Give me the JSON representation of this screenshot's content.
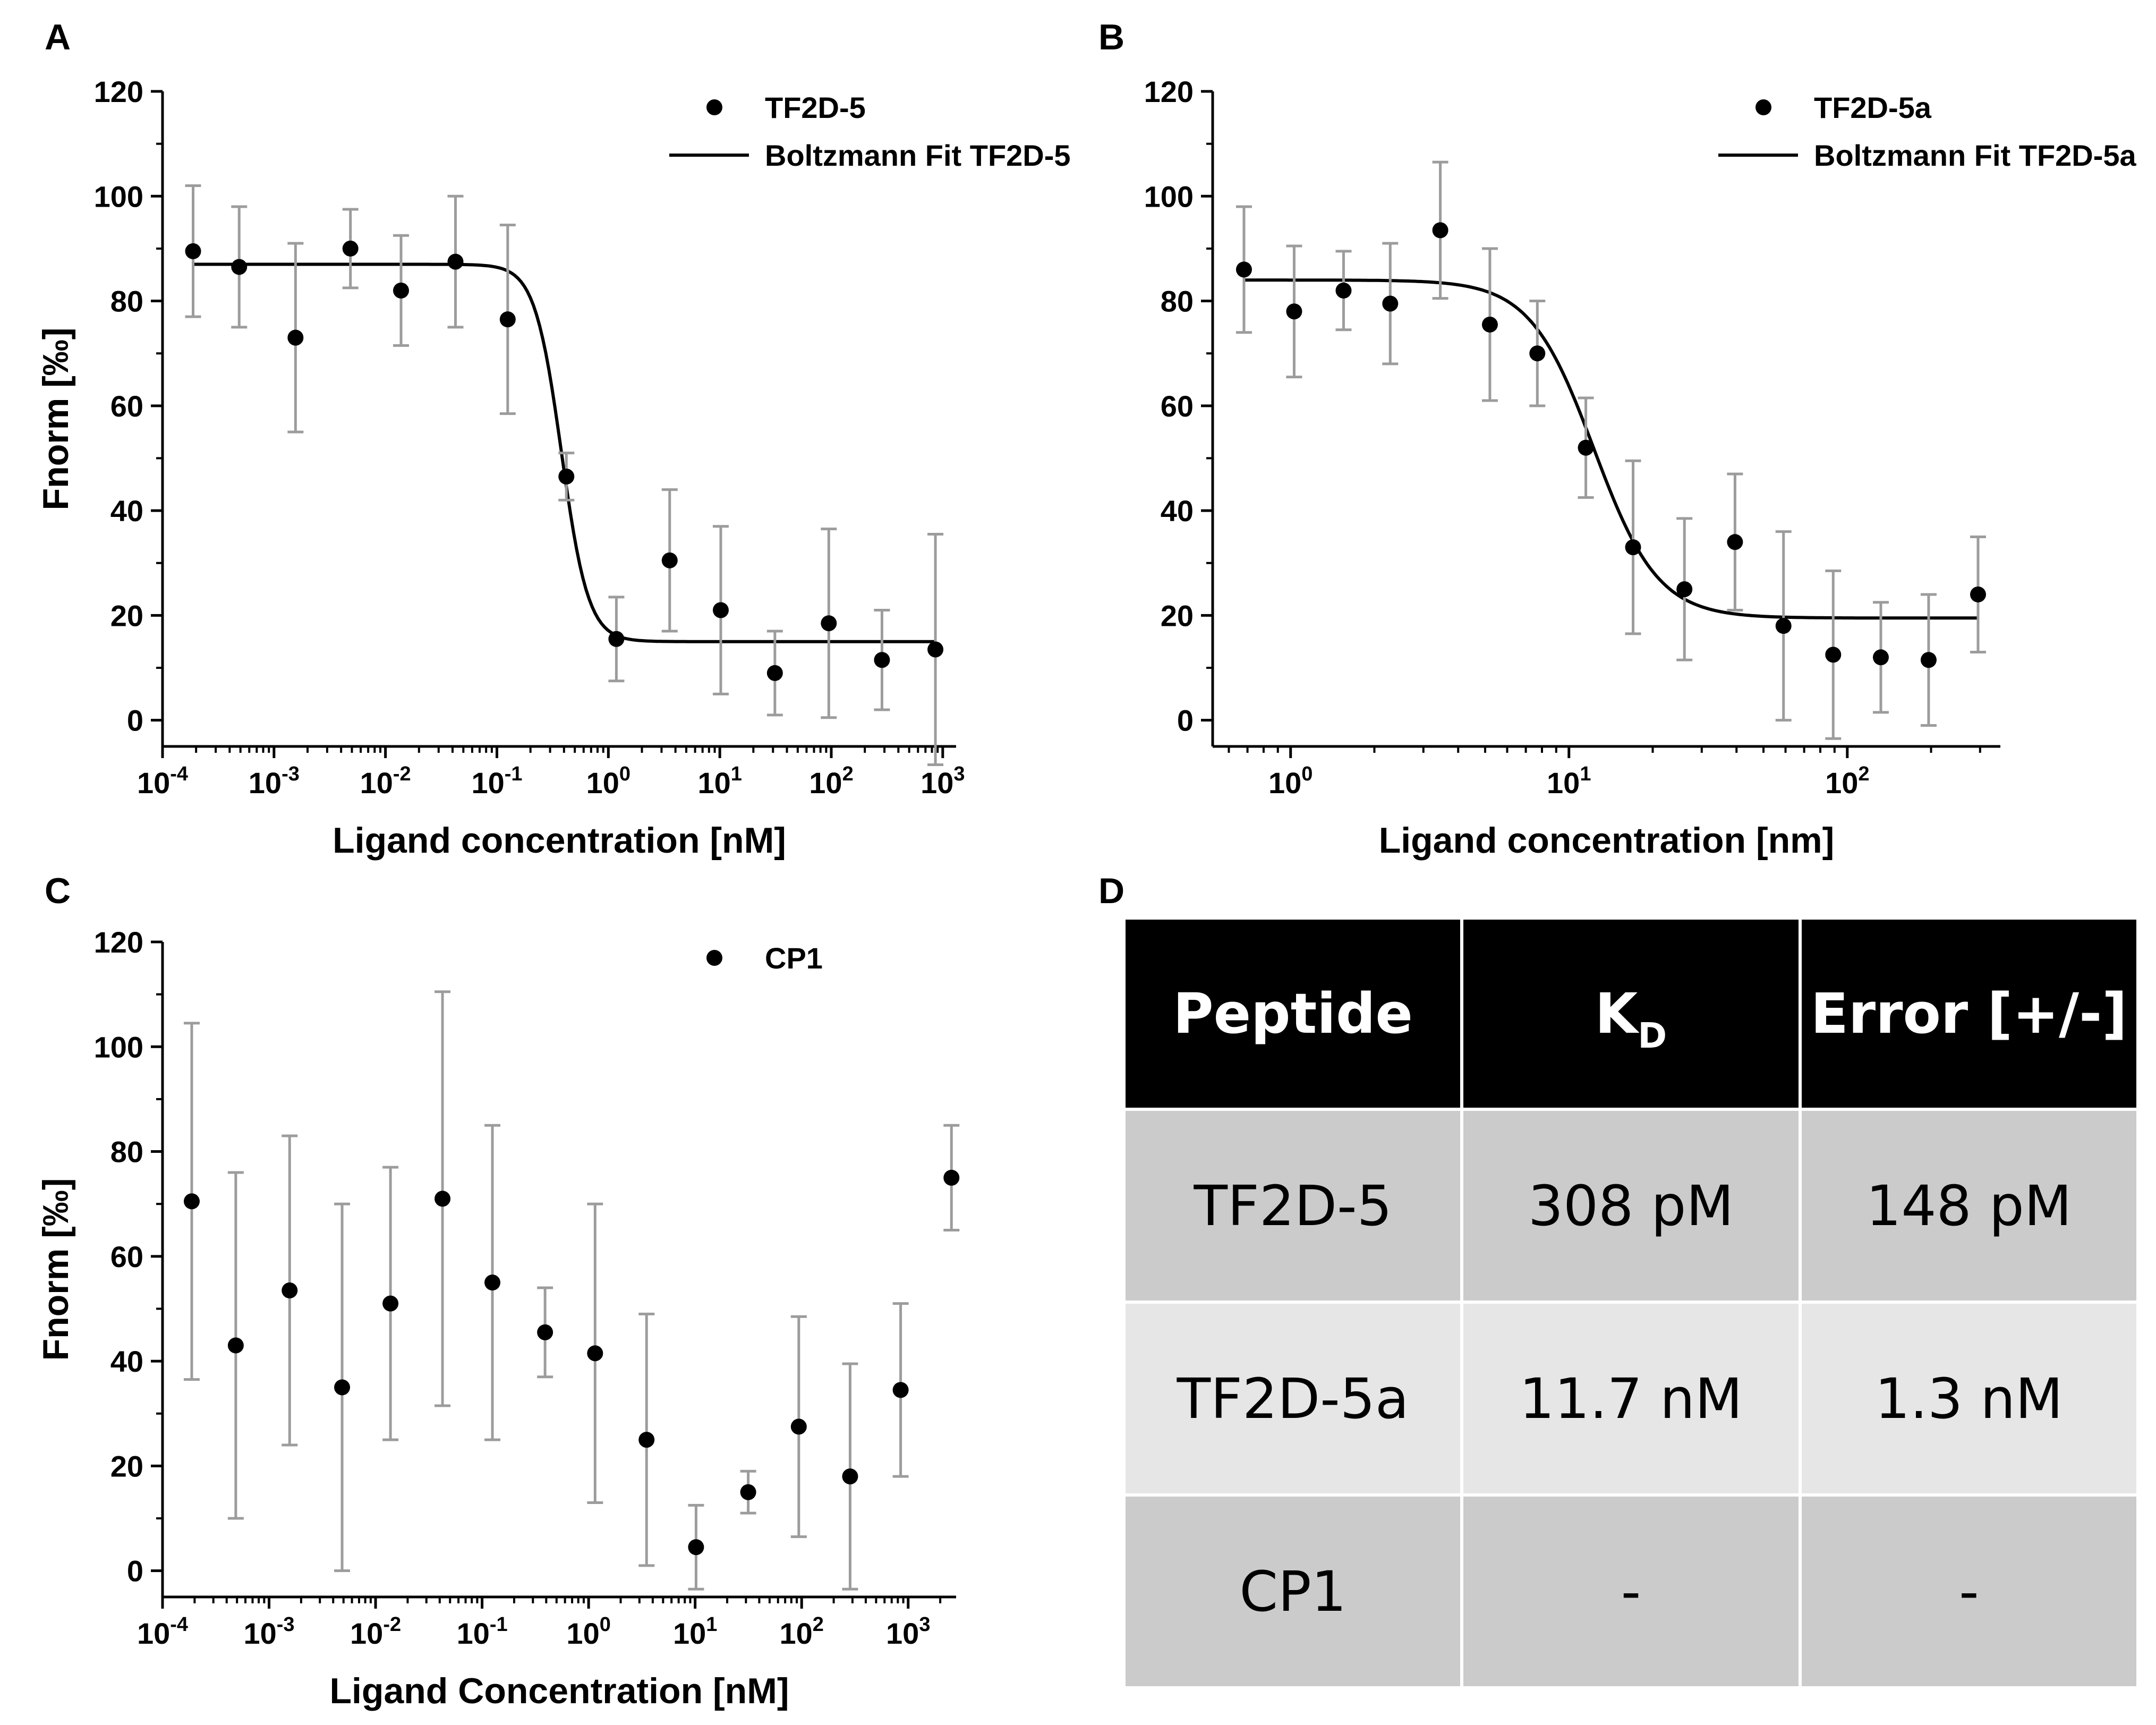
{
  "panels": [
    {
      "letter": "A",
      "chart_data": {
        "type": "scatter",
        "xscale": "log",
        "xlim_log10": [
          -4.0,
          3.12
        ],
        "ylim": [
          -5,
          120
        ],
        "yticks": [
          0,
          20,
          40,
          60,
          80,
          100,
          120
        ],
        "xtick_labels": [
          {
            "pow": -4,
            "text": "10",
            "sup": "-4"
          },
          {
            "pow": -3,
            "text": "10",
            "sup": "-3"
          },
          {
            "pow": -2,
            "text": "10",
            "sup": "-2"
          },
          {
            "pow": -1,
            "text": "10",
            "sup": "-1"
          },
          {
            "pow": 0,
            "text": "10",
            "sup": "0"
          },
          {
            "pow": 1,
            "text": "10",
            "sup": "1"
          },
          {
            "pow": 2,
            "text": "10",
            "sup": "2"
          },
          {
            "pow": 3,
            "text": "10",
            "sup": "3"
          }
        ],
        "xlabel": "Ligand concentration [nM]",
        "ylabel": "Fnorm [‰]",
        "legend_position": "top-right",
        "series": [
          {
            "name": "TF2D-5",
            "kind": "points",
            "x": [
              0.000188,
              0.000487,
              0.00156,
              0.00485,
              0.0138,
              0.0425,
              0.125,
              0.42,
              1.18,
              3.55,
              10.2,
              31.2,
              95.0,
              285.0,
              860.0
            ],
            "y": [
              89.5,
              86.5,
              73,
              90,
              82,
              87.5,
              76.5,
              46.5,
              15.5,
              30.5,
              21,
              9,
              18.5,
              11.5,
              13.5
            ],
            "err": [
              12.5,
              11.5,
              18,
              7.5,
              10.5,
              12.5,
              18,
              4.5,
              8,
              13.5,
              16,
              8,
              18,
              9.5,
              22
            ]
          },
          {
            "name": "Boltzmann Fit TF2D-5",
            "kind": "fit",
            "top": 87,
            "bottom": 15,
            "x0_log10": -0.42,
            "dx": 0.12,
            "range_log10": [
              -3.72,
              2.93
            ]
          }
        ]
      }
    },
    {
      "letter": "B",
      "chart_data": {
        "type": "scatter",
        "xscale": "log",
        "xlim_log10": [
          -0.28,
          2.55
        ],
        "ylim": [
          -5,
          120
        ],
        "yticks": [
          0,
          20,
          40,
          60,
          80,
          100,
          120
        ],
        "xtick_labels": [
          {
            "pow": 0,
            "text": "10",
            "sup": "0"
          },
          {
            "pow": 1,
            "text": "10",
            "sup": "1"
          },
          {
            "pow": 2,
            "text": "10",
            "sup": "2"
          }
        ],
        "xlabel": "Ligand concentration [nm]",
        "ylabel": "Fnorm [‰]",
        "legend_position": "top-right",
        "series": [
          {
            "name": "TF2D-5a",
            "kind": "points",
            "x": [
              0.68,
              1.03,
              1.55,
              2.28,
              3.45,
              5.2,
              7.7,
              11.5,
              17.0,
              26.0,
              39.5,
              59.0,
              89.0,
              132.0,
              196.0,
              295.0
            ],
            "y": [
              86,
              78,
              82,
              79.5,
              93.5,
              75.5,
              70,
              52,
              33,
              25,
              34,
              18,
              12.5,
              12,
              11.5,
              24
            ],
            "err": [
              12,
              12.5,
              7.5,
              11.5,
              13,
              14.5,
              10,
              9.5,
              16.5,
              13.5,
              13,
              18,
              16,
              10.5,
              12.5,
              11
            ]
          },
          {
            "name": "Boltzmann Fit TF2D-5a",
            "kind": "fit",
            "top": 84,
            "bottom": 19.5,
            "x0_log10": 1.09,
            "dx": 0.115,
            "range_log10": [
              -0.17,
              2.47
            ]
          }
        ]
      }
    },
    {
      "letter": "C",
      "chart_data": {
        "type": "scatter",
        "xscale": "log",
        "xlim_log10": [
          -4.0,
          3.45
        ],
        "ylim": [
          -5,
          120
        ],
        "yticks": [
          0,
          20,
          40,
          60,
          80,
          100,
          120
        ],
        "xtick_labels": [
          {
            "pow": -4,
            "text": "10",
            "sup": "-4"
          },
          {
            "pow": -3,
            "text": "10",
            "sup": "-3"
          },
          {
            "pow": -2,
            "text": "10",
            "sup": "-2"
          },
          {
            "pow": -1,
            "text": "10",
            "sup": "-1"
          },
          {
            "pow": 0,
            "text": "10",
            "sup": "0"
          },
          {
            "pow": 1,
            "text": "10",
            "sup": "1"
          },
          {
            "pow": 2,
            "text": "10",
            "sup": "2"
          },
          {
            "pow": 3,
            "text": "10",
            "sup": "3"
          }
        ],
        "xlabel": "Ligand Concentration [nM]",
        "ylabel": "Fnorm [‰]",
        "legend_position": "top-right",
        "series": [
          {
            "name": "CP1",
            "kind": "points",
            "x": [
              0.000188,
              0.000487,
              0.00156,
              0.00485,
              0.0138,
              0.0425,
              0.125,
              0.39,
              1.15,
              3.5,
              10.2,
              31.5,
              94.0,
              285.0,
              850.0,
              2550.0
            ],
            "y": [
              70.5,
              43,
              53.5,
              35,
              51,
              71,
              55,
              45.5,
              41.5,
              25,
              4.5,
              15,
              27.5,
              18,
              34.5,
              75
            ],
            "err": [
              34,
              33,
              29.5,
              35,
              26,
              39.5,
              30,
              8.5,
              28.5,
              24,
              8,
              4,
              21,
              21.5,
              16.5,
              10
            ]
          }
        ]
      }
    }
  ],
  "table": {
    "letter": "D",
    "headers": {
      "peptide": "Peptide",
      "kd_main": "K",
      "kd_sub": "D",
      "error": "Error [+/-]"
    },
    "rows": [
      {
        "peptide": "TF2D-5",
        "kd": "308 pM",
        "error": "148 pM"
      },
      {
        "peptide": "TF2D-5a",
        "kd": "11.7 nM",
        "error": "1.3 nM"
      },
      {
        "peptide": "CP1",
        "kd": "-",
        "error": "-"
      }
    ]
  }
}
